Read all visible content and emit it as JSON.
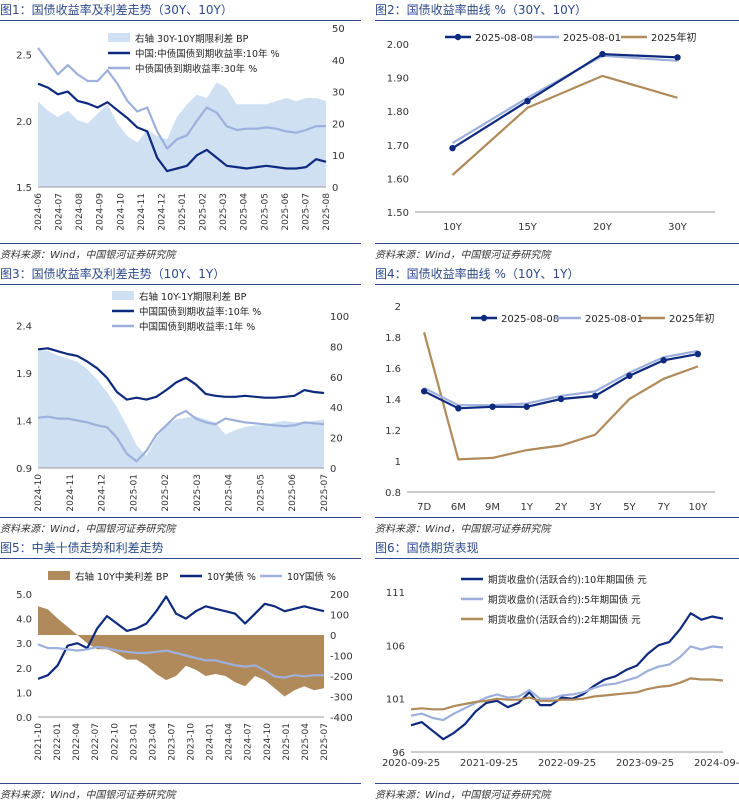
{
  "source_text": "资料来源：Wind，中国银河证券研究院",
  "colors": {
    "navy": "#0e2a7e",
    "light": "#9db0dc",
    "fill": "#cfe0f3",
    "brown": "#b08a5a",
    "title": "#2e4a8a"
  },
  "chart_data": [
    {
      "id": "c1",
      "type": "line",
      "title": "图1：国债收益率及利差走势（30Y、10Y）",
      "x_ticks": [
        "2024-06",
        "2024-07",
        "2024-08",
        "2024-09",
        "2024-10",
        "2024-11",
        "2024-12",
        "2025-01",
        "2025-02",
        "2025-03",
        "2025-04",
        "2025-05",
        "2025-06",
        "2025-07",
        "2025-08"
      ],
      "y_left": {
        "min": 1.5,
        "max": 2.7,
        "ticks": [
          "1.5",
          "2.0",
          "2.5"
        ]
      },
      "y_right": {
        "min": 0,
        "max": 50,
        "ticks": [
          "0",
          "10",
          "20",
          "30",
          "40",
          "50"
        ]
      },
      "legend": [
        "右轴 30Y-10Y期限利差 BP",
        "中国:中债国债到期收益率:10年 %",
        "中债国债到期收益率:30年 %"
      ],
      "series": [
        {
          "name": "右轴 30Y-10Y期限利差 BP",
          "style": "area",
          "axis": "right",
          "color": "#cfe0f3",
          "values": [
            27,
            24,
            22,
            24,
            21,
            20,
            23,
            26,
            20,
            16,
            14,
            18,
            16,
            15,
            22,
            26,
            29,
            28,
            33,
            31,
            26,
            26,
            26,
            26,
            27,
            28,
            27,
            28,
            28,
            27
          ]
        },
        {
          "name": "中国:中债国债到期收益率:10年 %",
          "style": "line",
          "axis": "left",
          "color": "#0e2a7e",
          "values": [
            2.28,
            2.25,
            2.2,
            2.22,
            2.15,
            2.13,
            2.1,
            2.14,
            2.08,
            2.02,
            1.95,
            1.92,
            1.72,
            1.62,
            1.64,
            1.66,
            1.74,
            1.78,
            1.72,
            1.66,
            1.65,
            1.64,
            1.65,
            1.66,
            1.65,
            1.64,
            1.64,
            1.65,
            1.71,
            1.69
          ]
        },
        {
          "name": "中债国债到期收益率:30年 %",
          "style": "line",
          "axis": "left",
          "color": "#9db0dc",
          "values": [
            2.55,
            2.45,
            2.35,
            2.42,
            2.35,
            2.3,
            2.3,
            2.38,
            2.28,
            2.15,
            2.07,
            2.1,
            1.92,
            1.79,
            1.86,
            1.89,
            2.0,
            2.1,
            2.06,
            1.96,
            1.93,
            1.94,
            1.94,
            1.95,
            1.94,
            1.92,
            1.91,
            1.93,
            1.96,
            1.96
          ]
        }
      ]
    },
    {
      "id": "c2",
      "type": "line",
      "title": "图2：国债收益率曲线 %（30Y、10Y）",
      "categories": [
        "10Y",
        "15Y",
        "20Y",
        "30Y"
      ],
      "y": {
        "min": 1.5,
        "max": 2.0,
        "ticks": [
          "1.50",
          "1.60",
          "1.70",
          "1.80",
          "1.90",
          "2.00"
        ]
      },
      "series": [
        {
          "name": "2025-08-08",
          "color": "#0e2a7e",
          "marker": true,
          "values": [
            1.69,
            1.83,
            1.97,
            1.96
          ]
        },
        {
          "name": "2025-08-01",
          "color": "#9db0dc",
          "marker": false,
          "values": [
            1.705,
            1.84,
            1.965,
            1.95
          ]
        },
        {
          "name": "2025年初",
          "color": "#b08a5a",
          "marker": false,
          "values": [
            1.61,
            1.81,
            1.905,
            1.84
          ]
        }
      ]
    },
    {
      "id": "c3",
      "type": "line",
      "title": "图3：国债收益率及利差走势（10Y、1Y）",
      "x_ticks": [
        "2024-10",
        "2024-11",
        "2024-12",
        "2025-01",
        "2025-02",
        "2025-03",
        "2025-04",
        "2025-05",
        "2025-06",
        "2025-07"
      ],
      "y_left": {
        "min": 0.9,
        "max": 2.5,
        "ticks": [
          "0.9",
          "1.4",
          "1.9",
          "2.4"
        ]
      },
      "y_right": {
        "min": 0,
        "max": 100,
        "ticks": [
          "0",
          "20",
          "40",
          "60",
          "80",
          "100"
        ]
      },
      "legend": [
        "右轴 10Y-1Y期限利差 BP",
        "中国国债到期收益率:10年 %",
        "中国国债到期收益率:1年 %"
      ],
      "series": [
        {
          "name": "右轴 10Y-1Y期限利差 BP",
          "style": "area",
          "axis": "right",
          "color": "#cfe0f3",
          "values": [
            78,
            77,
            74,
            72,
            70,
            65,
            58,
            50,
            40,
            28,
            15,
            8,
            20,
            28,
            32,
            33,
            34,
            32,
            30,
            22,
            25,
            27,
            28,
            28,
            30,
            31,
            30,
            30,
            31,
            32
          ]
        },
        {
          "name": "中国国债到期收益率:10年 %",
          "style": "line",
          "axis": "left",
          "color": "#0e2a7e",
          "values": [
            2.15,
            2.16,
            2.13,
            2.1,
            2.08,
            2.02,
            1.95,
            1.85,
            1.7,
            1.62,
            1.64,
            1.62,
            1.65,
            1.72,
            1.8,
            1.85,
            1.78,
            1.68,
            1.66,
            1.65,
            1.65,
            1.66,
            1.65,
            1.64,
            1.64,
            1.65,
            1.66,
            1.72,
            1.7,
            1.69
          ]
        },
        {
          "name": "中国国债到期收益率:1年 %",
          "style": "line",
          "axis": "left",
          "color": "#9db0dc",
          "values": [
            1.43,
            1.44,
            1.42,
            1.42,
            1.4,
            1.38,
            1.35,
            1.33,
            1.22,
            1.05,
            0.97,
            1.08,
            1.25,
            1.35,
            1.45,
            1.5,
            1.42,
            1.38,
            1.36,
            1.42,
            1.4,
            1.38,
            1.37,
            1.36,
            1.35,
            1.34,
            1.35,
            1.38,
            1.37,
            1.36
          ]
        }
      ]
    },
    {
      "id": "c4",
      "type": "line",
      "title": "图4：国债收益率曲线 %（10Y、1Y）",
      "categories": [
        "7D",
        "6M",
        "9M",
        "1Y",
        "2Y",
        "3Y",
        "5Y",
        "7Y",
        "10Y"
      ],
      "y": {
        "min": 0.8,
        "max": 2.0,
        "ticks": [
          "0.8",
          "1",
          "1.2",
          "1.4",
          "1.6",
          "1.8",
          "2"
        ]
      },
      "series": [
        {
          "name": "2025-08-08",
          "color": "#0e2a7e",
          "marker": true,
          "values": [
            1.45,
            1.34,
            1.35,
            1.35,
            1.4,
            1.42,
            1.55,
            1.65,
            1.69
          ]
        },
        {
          "name": "2025-08-01",
          "color": "#9db0dc",
          "marker": false,
          "values": [
            1.47,
            1.36,
            1.36,
            1.37,
            1.42,
            1.45,
            1.57,
            1.67,
            1.71
          ]
        },
        {
          "name": "2025年初",
          "color": "#b08a5a",
          "marker": false,
          "values": [
            1.83,
            1.01,
            1.02,
            1.07,
            1.1,
            1.17,
            1.4,
            1.53,
            1.61
          ]
        }
      ]
    },
    {
      "id": "c5",
      "type": "line",
      "title": "图5：中美十债走势和利差走势",
      "x_ticks": [
        "2021-10",
        "2022-01",
        "2022-04",
        "2022-07",
        "2022-10",
        "2023-01",
        "2023-04",
        "2023-07",
        "2023-10",
        "2024-01",
        "2024-04",
        "2024-07",
        "2024-10",
        "2025-01",
        "2025-04",
        "2025-07"
      ],
      "y_left": {
        "min": 0,
        "max": 5,
        "ticks": [
          "0.0",
          "1.0",
          "2.0",
          "3.0",
          "4.0",
          "5.0"
        ]
      },
      "y_right": {
        "min": -400,
        "max": 200,
        "ticks": [
          "-400",
          "-300",
          "-200",
          "-100",
          "0",
          "100",
          "200"
        ]
      },
      "legend": [
        "右轴 10Y中美利差 BP",
        "10Y美债 %",
        "10Y国债 %"
      ],
      "series": [
        {
          "name": "右轴 10Y中美利差 BP",
          "style": "area",
          "axis": "right",
          "color": "#b08a5a",
          "values": [
            140,
            125,
            80,
            40,
            0,
            -40,
            -70,
            -70,
            -90,
            -120,
            -120,
            -150,
            -190,
            -220,
            -200,
            -150,
            -170,
            -200,
            -190,
            -200,
            -230,
            -250,
            -200,
            -220,
            -260,
            -300,
            -270,
            -250,
            -270,
            -260
          ]
        },
        {
          "name": "10Y美债 %",
          "style": "line",
          "axis": "left",
          "color": "#0e2a7e",
          "values": [
            1.55,
            1.7,
            2.1,
            2.9,
            3.0,
            2.8,
            3.6,
            4.1,
            3.8,
            3.5,
            3.6,
            3.8,
            4.3,
            4.9,
            4.2,
            4.0,
            4.3,
            4.5,
            4.4,
            4.3,
            4.2,
            3.8,
            4.2,
            4.6,
            4.5,
            4.3,
            4.4,
            4.5,
            4.4,
            4.3
          ]
        },
        {
          "name": "10Y国债 %",
          "style": "line",
          "axis": "left",
          "color": "#9db0dc",
          "values": [
            2.95,
            2.8,
            2.8,
            2.75,
            2.7,
            2.75,
            2.85,
            2.8,
            2.7,
            2.65,
            2.6,
            2.6,
            2.65,
            2.7,
            2.6,
            2.5,
            2.4,
            2.3,
            2.3,
            2.2,
            2.1,
            2.05,
            2.1,
            1.9,
            1.65,
            1.6,
            1.7,
            1.65,
            1.7,
            1.7
          ]
        }
      ]
    },
    {
      "id": "c6",
      "type": "line",
      "title": "图6：国债期货表现",
      "x_ticks": [
        "2020-09-25",
        "2021-09-25",
        "2022-09-25",
        "2023-09-25",
        "2024-09-25"
      ],
      "y": {
        "min": 96,
        "max": 111,
        "ticks": [
          "96",
          "101",
          "106",
          "111"
        ]
      },
      "legend": [
        "期货收盘价(活跃合约):10年期国债 元",
        "期货收盘价(活跃合约):5年期国债 元",
        "期货收盘价(活跃合约):2年期国债 元"
      ],
      "series": [
        {
          "name": "期货收盘价(活跃合约):10年期国债 元",
          "color": "#0e2a7e",
          "values": [
            98.5,
            98.8,
            98.0,
            97.2,
            97.8,
            98.6,
            99.8,
            100.6,
            100.8,
            100.2,
            100.6,
            101.6,
            100.4,
            100.4,
            101.1,
            101.0,
            101.4,
            102.2,
            102.8,
            103.1,
            103.7,
            104.1,
            105.2,
            106.0,
            106.3,
            107.5,
            109.0,
            108.4,
            108.7,
            108.5
          ]
        },
        {
          "name": "期货收盘价(活跃合约):5年期国债 元",
          "color": "#9db0dc",
          "values": [
            99.4,
            99.6,
            99.2,
            99.0,
            99.6,
            100.1,
            100.6,
            101.1,
            101.4,
            101.1,
            101.2,
            101.8,
            101.0,
            101.0,
            101.3,
            101.4,
            101.6,
            102.0,
            102.3,
            102.4,
            102.7,
            103.0,
            103.6,
            104.0,
            104.2,
            104.9,
            105.9,
            105.6,
            105.9,
            105.8
          ]
        },
        {
          "name": "期货收盘价(活跃合约):2年期国债 元",
          "color": "#b08a5a",
          "values": [
            100.0,
            100.1,
            100.0,
            100.0,
            100.3,
            100.5,
            100.7,
            100.8,
            101.0,
            100.9,
            100.9,
            101.1,
            100.8,
            100.8,
            100.9,
            100.9,
            101.0,
            101.2,
            101.3,
            101.4,
            101.5,
            101.6,
            101.9,
            102.1,
            102.2,
            102.5,
            102.9,
            102.8,
            102.8,
            102.7
          ]
        }
      ]
    }
  ]
}
